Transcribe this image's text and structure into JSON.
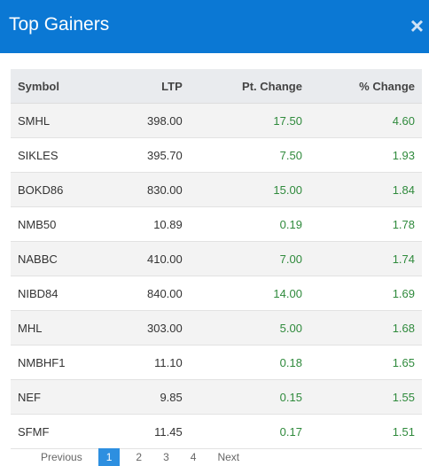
{
  "header": {
    "title": "Top Gainers",
    "close": "×"
  },
  "table": {
    "columns": [
      "Symbol",
      "LTP",
      "Pt. Change",
      "% Change"
    ],
    "rows": [
      [
        "SMHL",
        "398.00",
        "17.50",
        "4.60"
      ],
      [
        "SIKLES",
        "395.70",
        "7.50",
        "1.93"
      ],
      [
        "BOKD86",
        "830.00",
        "15.00",
        "1.84"
      ],
      [
        "NMB50",
        "10.89",
        "0.19",
        "1.78"
      ],
      [
        "NABBC",
        "410.00",
        "7.00",
        "1.74"
      ],
      [
        "NIBD84",
        "840.00",
        "14.00",
        "1.69"
      ],
      [
        "MHL",
        "303.00",
        "5.00",
        "1.68"
      ],
      [
        "NMBHF1",
        "11.10",
        "0.18",
        "1.65"
      ],
      [
        "NEF",
        "9.85",
        "0.15",
        "1.55"
      ],
      [
        "SFMF",
        "11.45",
        "0.17",
        "1.51"
      ]
    ]
  },
  "pagination": [
    "Previous",
    "1",
    "2",
    "3",
    "4",
    "Next"
  ]
}
